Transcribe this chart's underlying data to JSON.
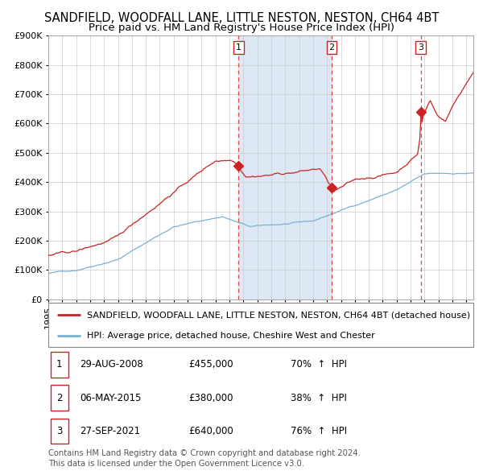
{
  "title": "SANDFIELD, WOODFALL LANE, LITTLE NESTON, NESTON, CH64 4BT",
  "subtitle": "Price paid vs. HM Land Registry's House Price Index (HPI)",
  "ylim": [
    0,
    900000
  ],
  "yticks": [
    0,
    100000,
    200000,
    300000,
    400000,
    500000,
    600000,
    700000,
    800000,
    900000
  ],
  "ytick_labels": [
    "£0",
    "£100K",
    "£200K",
    "£300K",
    "£400K",
    "£500K",
    "£600K",
    "£700K",
    "£800K",
    "£900K"
  ],
  "xlim_start": 1995.0,
  "xlim_end": 2025.5,
  "shaded_region_color": "#dce9f5",
  "grid_color": "#cccccc",
  "red_line_color": "#cc2222",
  "blue_line_color": "#7ab0d4",
  "sale_marker_color": "#cc2222",
  "vline_color": "#dd4444",
  "title_fontsize": 10.5,
  "subtitle_fontsize": 9.5,
  "tick_fontsize": 8,
  "legend_fontsize": 8,
  "table_fontsize": 8.5,
  "sales": [
    {
      "num": 1,
      "date_year": 2008.66,
      "price": 455000,
      "date_str": "29-AUG-2008",
      "pct": "70%",
      "dir": "↑"
    },
    {
      "num": 2,
      "date_year": 2015.34,
      "price": 380000,
      "date_str": "06-MAY-2015",
      "pct": "38%",
      "dir": "↑"
    },
    {
      "num": 3,
      "date_year": 2021.73,
      "price": 640000,
      "date_str": "27-SEP-2021",
      "pct": "76%",
      "dir": "↑"
    }
  ],
  "legend_line1": "SANDFIELD, WOODFALL LANE, LITTLE NESTON, NESTON, CH64 4BT (detached house)",
  "legend_line2": "HPI: Average price, detached house, Cheshire West and Chester",
  "footer1": "Contains HM Land Registry data © Crown copyright and database right 2024.",
  "footer2": "This data is licensed under the Open Government Licence v3.0."
}
